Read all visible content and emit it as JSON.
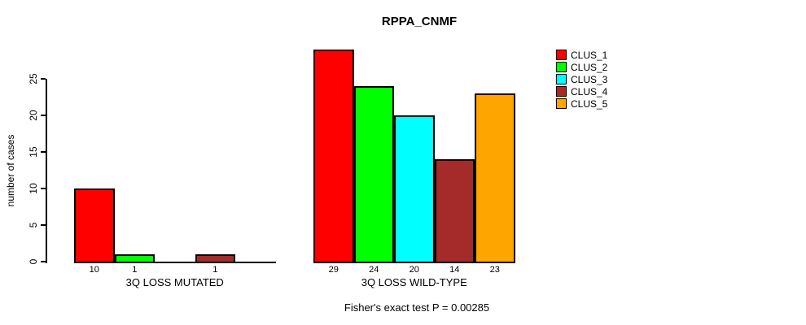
{
  "chart_data": {
    "type": "bar",
    "title": "RPPA_CNMF",
    "ylabel": "number of cases",
    "xlabel": "",
    "ylim": [
      0,
      25
    ],
    "yticks": [
      0,
      5,
      10,
      15,
      20,
      25
    ],
    "grid": false,
    "categories": [
      "3Q LOSS MUTATED",
      "3Q LOSS WILD-TYPE"
    ],
    "series": [
      {
        "name": "CLUS_1",
        "color": "#FF0000",
        "values": [
          10,
          29
        ]
      },
      {
        "name": "CLUS_2",
        "color": "#00FF00",
        "values": [
          1,
          24
        ]
      },
      {
        "name": "CLUS_3",
        "color": "#00FFFF",
        "values": [
          0,
          20
        ]
      },
      {
        "name": "CLUS_4",
        "color": "#A52A2A",
        "values": [
          1,
          14
        ]
      },
      {
        "name": "CLUS_5",
        "color": "#FFA500",
        "values": [
          0,
          23
        ]
      }
    ],
    "bar_labels": [
      [
        "10",
        "1",
        "",
        "1",
        ""
      ],
      [
        "29",
        "24",
        "20",
        "14",
        "23"
      ]
    ],
    "legend": {
      "position": "top-right",
      "entries": [
        "CLUS_1",
        "CLUS_2",
        "CLUS_3",
        "CLUS_4",
        "CLUS_5"
      ]
    },
    "footnote": "Fisher's exact test P = 0.00285"
  }
}
